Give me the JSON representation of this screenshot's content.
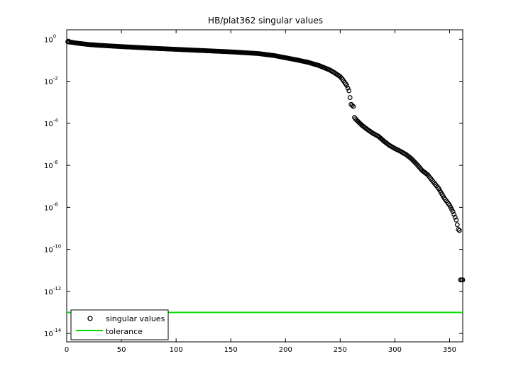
{
  "chart_data": {
    "type": "scatter",
    "title": "HB/plat362 singular values",
    "xlabel": "",
    "ylabel": "",
    "xlim": [
      0,
      362
    ],
    "ylim_log10": [
      -14.4,
      0.45
    ],
    "y_scale": "log",
    "grid": false,
    "legend_position": "bottom-left",
    "x_ticks": [
      "0",
      "50",
      "100",
      "150",
      "200",
      "250",
      "300",
      "350"
    ],
    "y_tick_base": "10",
    "y_tick_exponents": [
      "0",
      "-2",
      "-4",
      "-6",
      "-8",
      "-10",
      "-12",
      "-14"
    ],
    "series": [
      {
        "name": "singular values",
        "marker": "circle-open",
        "color": "#000000",
        "n_points": 362,
        "log10_profile": [
          [
            1,
            -0.12
          ],
          [
            2,
            -0.13
          ],
          [
            5,
            -0.15
          ],
          [
            10,
            -0.19
          ],
          [
            20,
            -0.25
          ],
          [
            30,
            -0.29
          ],
          [
            50,
            -0.35
          ],
          [
            75,
            -0.42
          ],
          [
            100,
            -0.48
          ],
          [
            125,
            -0.54
          ],
          [
            150,
            -0.6
          ],
          [
            175,
            -0.68
          ],
          [
            190,
            -0.78
          ],
          [
            200,
            -0.88
          ],
          [
            210,
            -0.98
          ],
          [
            220,
            -1.09
          ],
          [
            230,
            -1.24
          ],
          [
            240,
            -1.45
          ],
          [
            245,
            -1.6
          ],
          [
            250,
            -1.78
          ],
          [
            252,
            -1.9
          ],
          [
            254,
            -2.05
          ],
          [
            256,
            -2.2
          ],
          [
            258,
            -2.45
          ],
          [
            260,
            -3.1
          ],
          [
            262,
            -3.2
          ],
          [
            263,
            -3.72
          ],
          [
            265,
            -3.85
          ],
          [
            270,
            -4.1
          ],
          [
            275,
            -4.3
          ],
          [
            280,
            -4.48
          ],
          [
            285,
            -4.62
          ],
          [
            290,
            -4.85
          ],
          [
            295,
            -5.05
          ],
          [
            300,
            -5.2
          ],
          [
            305,
            -5.33
          ],
          [
            310,
            -5.48
          ],
          [
            315,
            -5.68
          ],
          [
            320,
            -5.95
          ],
          [
            325,
            -6.25
          ],
          [
            330,
            -6.45
          ],
          [
            335,
            -6.78
          ],
          [
            340,
            -7.1
          ],
          [
            345,
            -7.55
          ],
          [
            350,
            -7.9
          ],
          [
            353,
            -8.2
          ],
          [
            356,
            -8.6
          ],
          [
            358,
            -9.05
          ],
          [
            359,
            -9.1
          ],
          [
            360,
            -11.45
          ],
          [
            361,
            -11.45
          ],
          [
            362,
            -11.45
          ]
        ]
      },
      {
        "name": "tolerance",
        "type": "line",
        "color": "#00dd00",
        "y": 1e-13,
        "x_range": [
          0,
          362
        ]
      }
    ],
    "legend": [
      "singular values",
      "tolerance"
    ]
  }
}
